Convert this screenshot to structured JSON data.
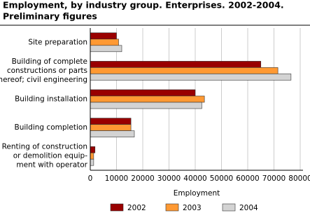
{
  "chart_data": {
    "type": "bar",
    "orientation": "horizontal",
    "title": [
      "Employment, by industry group. Enterprises. 2002-2004.",
      "Preliminary figures"
    ],
    "categories": [
      [
        "Site preparation"
      ],
      [
        "Building of complete",
        "constructions or parts",
        "thereof; civil engineering"
      ],
      [
        "Building installation"
      ],
      [
        "Building completion"
      ],
      [
        "Renting of construction",
        "or demolition equip-",
        "ment with operator"
      ]
    ],
    "series": [
      {
        "name": "2002",
        "color": "#990000",
        "values": [
          10000,
          65000,
          40000,
          15500,
          1800
        ]
      },
      {
        "name": "2003",
        "color": "#ff9933",
        "values": [
          10800,
          71500,
          43500,
          15500,
          1300
        ]
      },
      {
        "name": "2004",
        "color": "#d3d3d3",
        "values": [
          12000,
          76500,
          42500,
          16800,
          1300
        ]
      }
    ],
    "xlabel": "Employment",
    "xlim": [
      0,
      80000
    ],
    "xticks": [
      0,
      10000,
      20000,
      30000,
      40000,
      50000,
      60000,
      70000,
      80000
    ],
    "grid": true,
    "legend": "bottom"
  }
}
